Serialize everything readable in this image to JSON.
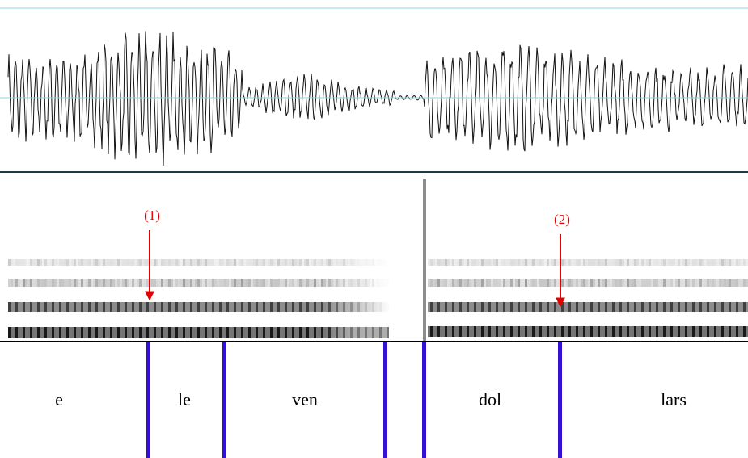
{
  "annotations": [
    "(1)",
    "(2)"
  ],
  "tier": {
    "intervals": [
      "e",
      "le",
      "ven",
      "dol",
      "lars"
    ]
  }
}
